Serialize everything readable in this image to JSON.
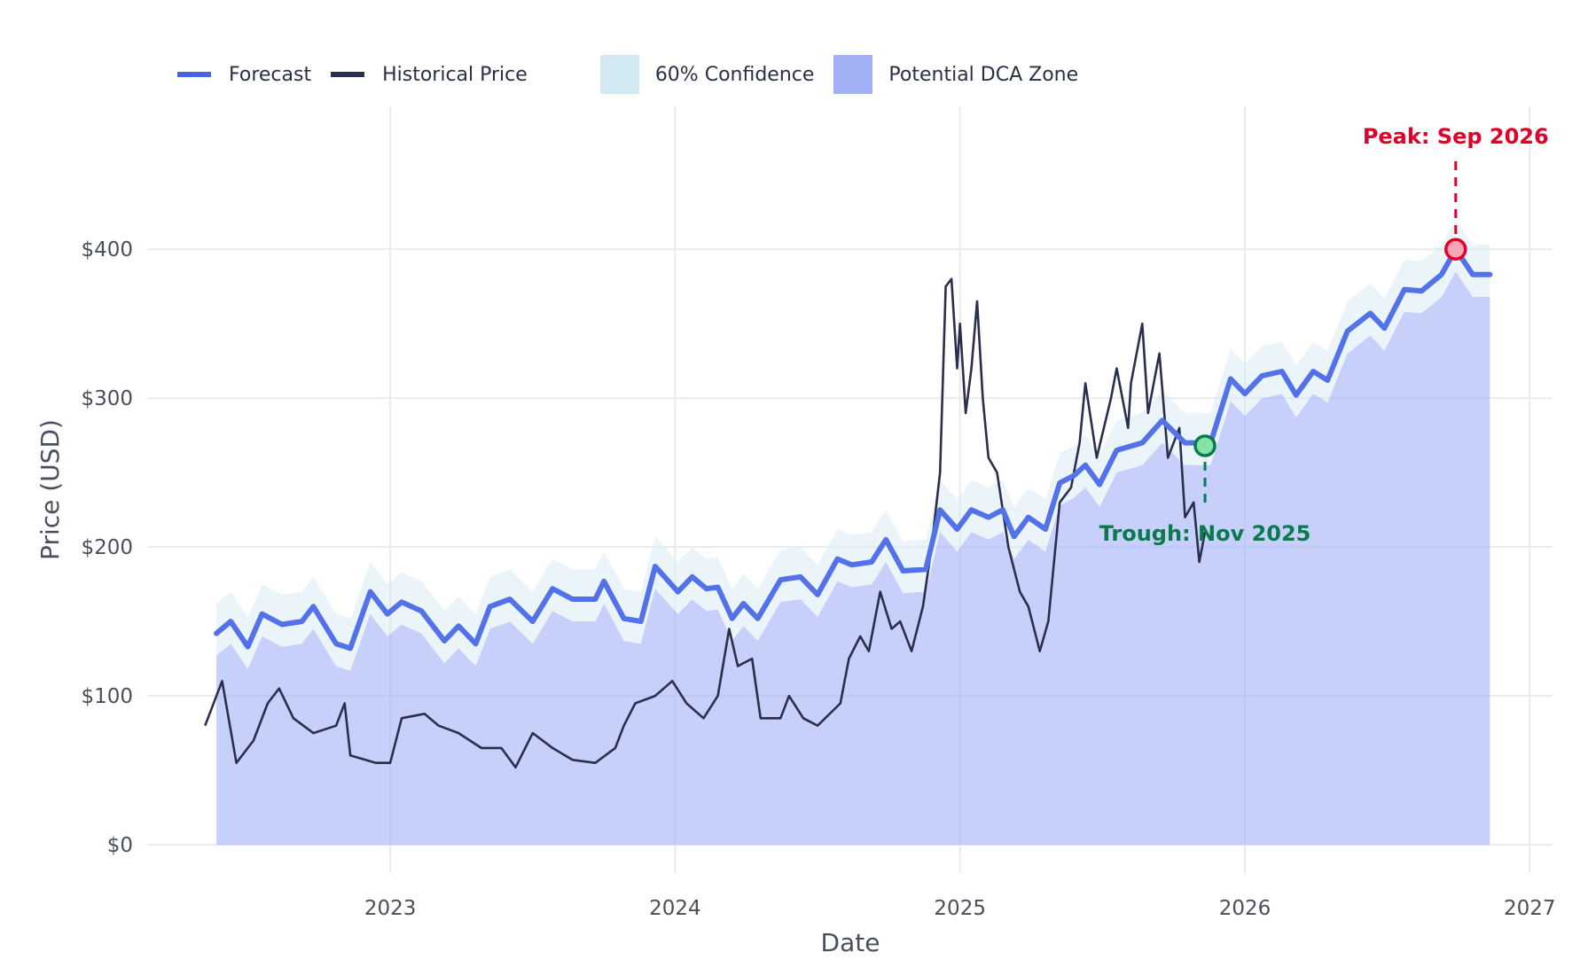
{
  "chart_data": {
    "type": "line",
    "title": "",
    "xlabel": "Date",
    "ylabel": "Price (USD)",
    "xlim": [
      2022.15,
      2027.08
    ],
    "ylim": [
      -19,
      496
    ],
    "grid": true,
    "legend_position": "top-left",
    "x_ticks": [
      {
        "value": 2023,
        "label": "2023"
      },
      {
        "value": 2024,
        "label": "2024"
      },
      {
        "value": 2025,
        "label": "2025"
      },
      {
        "value": 2026,
        "label": "2026"
      },
      {
        "value": 2027,
        "label": "2027"
      }
    ],
    "y_ticks": [
      {
        "value": 0,
        "label": "$0"
      },
      {
        "value": 100,
        "label": "$100"
      },
      {
        "value": 200,
        "label": "$200"
      },
      {
        "value": 300,
        "label": "$300"
      },
      {
        "value": 400,
        "label": "$400"
      }
    ],
    "legend": [
      {
        "name": "Forecast",
        "kind": "line",
        "color": "#4a63e0"
      },
      {
        "name": "Historical Price",
        "kind": "line",
        "color": "#2a2f4d"
      },
      {
        "name": "60% Confidence",
        "kind": "box",
        "color": "#d3e9f1"
      },
      {
        "name": "Potential DCA Zone",
        "kind": "box",
        "color": "#a2b1f6"
      }
    ],
    "series": [
      {
        "name": "Historical Price",
        "x": [
          2022.35,
          2022.41,
          2022.46,
          2022.52,
          2022.57,
          2022.61,
          2022.66,
          2022.73,
          2022.81,
          2022.84,
          2022.86,
          2022.95,
          2023.0,
          2023.04,
          2023.12,
          2023.17,
          2023.24,
          2023.32,
          2023.39,
          2023.44,
          2023.5,
          2023.57,
          2023.64,
          2023.72,
          2023.79,
          2023.82,
          2023.86,
          2023.93,
          2023.99,
          2024.04,
          2024.1,
          2024.15,
          2024.19,
          2024.22,
          2024.27,
          2024.3,
          2024.37,
          2024.4,
          2024.45,
          2024.5,
          2024.58,
          2024.61,
          2024.65,
          2024.68,
          2024.72,
          2024.76,
          2024.79,
          2024.83,
          2024.87,
          2024.9,
          2024.93,
          2024.95,
          2024.97,
          2024.99,
          2025.0,
          2025.02,
          2025.04,
          2025.06,
          2025.08,
          2025.1,
          2025.13,
          2025.17,
          2025.21,
          2025.24,
          2025.28,
          2025.31,
          2025.35,
          2025.39,
          2025.42,
          2025.44,
          2025.48,
          2025.53,
          2025.55,
          2025.59,
          2025.6,
          2025.64,
          2025.66,
          2025.7,
          2025.73,
          2025.77,
          2025.79,
          2025.82,
          2025.84,
          2025.86
        ],
        "y": [
          80,
          110,
          55,
          70,
          95,
          105,
          85,
          75,
          80,
          95,
          60,
          55,
          55,
          85,
          88,
          80,
          75,
          65,
          65,
          52,
          75,
          65,
          57,
          55,
          65,
          80,
          95,
          100,
          110,
          95,
          85,
          100,
          145,
          120,
          125,
          85,
          85,
          100,
          85,
          80,
          95,
          125,
          140,
          130,
          170,
          145,
          150,
          130,
          160,
          200,
          250,
          375,
          380,
          320,
          350,
          290,
          320,
          365,
          300,
          260,
          250,
          200,
          170,
          160,
          130,
          150,
          230,
          240,
          270,
          310,
          260,
          300,
          320,
          280,
          310,
          350,
          290,
          330,
          260,
          280,
          220,
          230,
          190,
          210
        ]
      },
      {
        "name": "Forecast",
        "x": [
          2022.39,
          2022.44,
          2022.5,
          2022.55,
          2022.62,
          2022.69,
          2022.73,
          2022.81,
          2022.86,
          2022.93,
          2022.99,
          2023.04,
          2023.11,
          2023.19,
          2023.24,
          2023.3,
          2023.35,
          2023.42,
          2023.5,
          2023.57,
          2023.64,
          2023.72,
          2023.75,
          2023.82,
          2023.88,
          2023.93,
          2024.01,
          2024.06,
          2024.11,
          2024.15,
          2024.2,
          2024.24,
          2024.29,
          2024.37,
          2024.44,
          2024.5,
          2024.57,
          2024.62,
          2024.69,
          2024.74,
          2024.8,
          2024.88,
          2024.93,
          2024.99,
          2025.04,
          2025.1,
          2025.15,
          2025.19,
          2025.24,
          2025.3,
          2025.35,
          2025.4,
          2025.44,
          2025.49,
          2025.55,
          2025.64,
          2025.71,
          2025.79,
          2025.88,
          2025.95,
          2026.0,
          2026.06,
          2026.13,
          2026.18,
          2026.24,
          2026.29,
          2026.36,
          2026.44,
          2026.49,
          2026.56,
          2026.62,
          2026.69,
          2026.74,
          2026.8,
          2026.86
        ],
        "y": [
          142,
          150,
          133,
          155,
          148,
          150,
          160,
          135,
          132,
          170,
          155,
          163,
          157,
          137,
          147,
          135,
          160,
          165,
          150,
          172,
          165,
          165,
          177,
          152,
          150,
          187,
          170,
          180,
          172,
          173,
          152,
          162,
          152,
          178,
          180,
          168,
          192,
          188,
          190,
          205,
          184,
          185,
          225,
          212,
          225,
          220,
          225,
          207,
          220,
          212,
          243,
          248,
          255,
          242,
          265,
          270,
          285,
          270,
          270,
          313,
          303,
          315,
          318,
          302,
          318,
          312,
          345,
          357,
          347,
          373,
          372,
          383,
          400,
          383,
          383
        ]
      }
    ],
    "confidence_band": {
      "label": "60% Confidence",
      "upper_offset": 20,
      "lower_offset": -15
    },
    "dca_zone": {
      "label": "Potential DCA Zone",
      "baseline": 0
    },
    "annotations": [
      {
        "label": "Peak: Sep 2026",
        "x": 2026.74,
        "y": 400,
        "color": "#e0002a"
      },
      {
        "label": "Trough: Nov 2025",
        "x": 2025.86,
        "y": 268,
        "color": "#0a7a4e"
      }
    ]
  }
}
